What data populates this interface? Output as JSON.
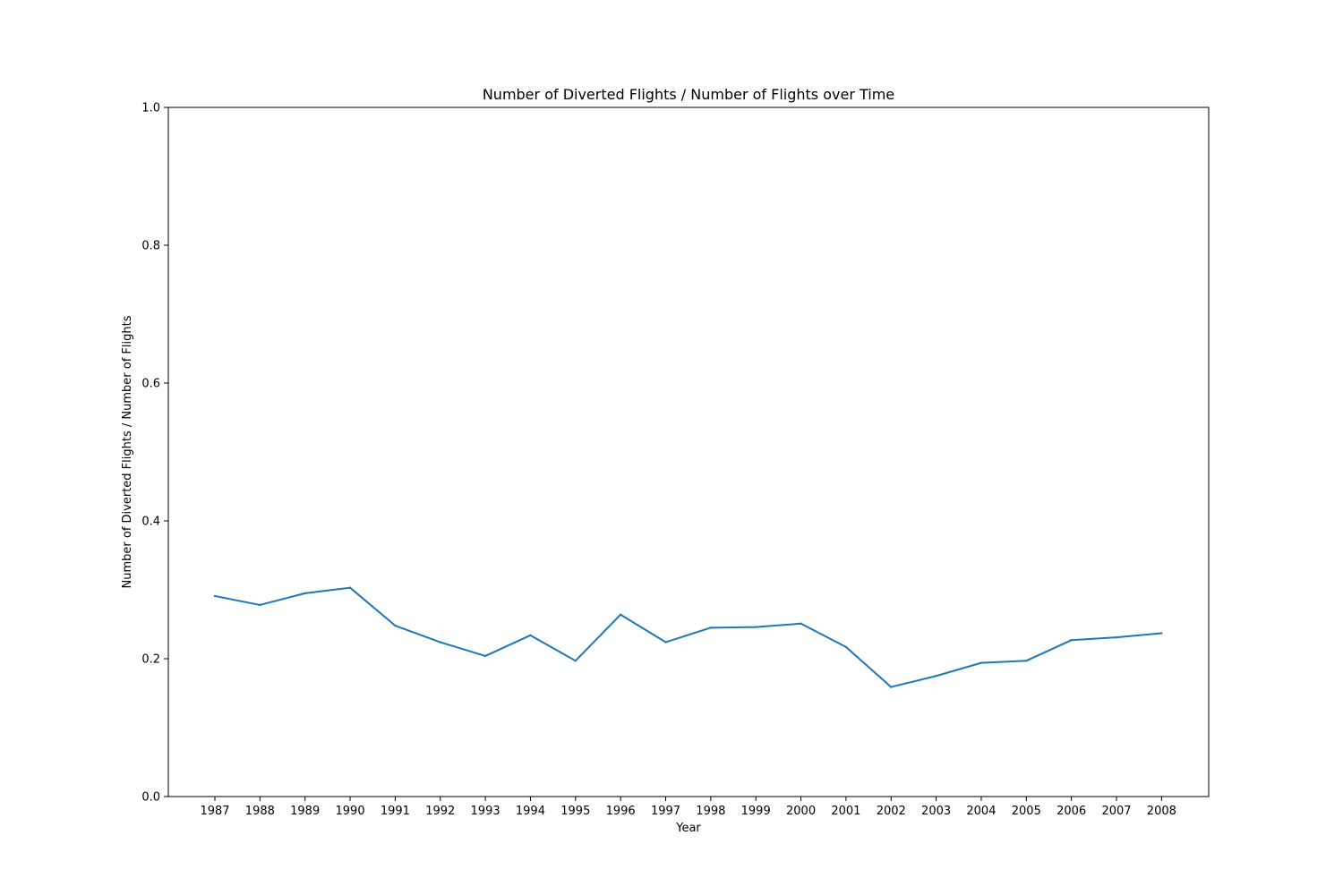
{
  "chart_data": {
    "type": "line",
    "title": "Number of Diverted Flights / Number of Flights over Time",
    "xlabel": "Year",
    "ylabel": "Number of Diverted Flights / Number of Flights",
    "categories": [
      "1987",
      "1988",
      "1989",
      "1990",
      "1991",
      "1992",
      "1993",
      "1994",
      "1995",
      "1996",
      "1997",
      "1998",
      "1999",
      "2000",
      "2001",
      "2002",
      "2003",
      "2004",
      "2005",
      "2006",
      "2007",
      "2008"
    ],
    "series": [
      {
        "values": [
          0.291,
          0.278,
          0.295,
          0.303,
          0.248,
          0.224,
          0.204,
          0.234,
          0.197,
          0.264,
          0.224,
          0.245,
          0.246,
          0.251,
          0.217,
          0.159,
          0.175,
          0.194,
          0.197,
          0.227,
          0.231,
          0.237
        ],
        "color": "#1f77b4"
      }
    ],
    "ylim": [
      0.0,
      1.0
    ],
    "yticks": [
      "0.0",
      "0.2",
      "0.4",
      "0.6",
      "0.8",
      "1.0"
    ],
    "grid": false,
    "legend": "none"
  }
}
